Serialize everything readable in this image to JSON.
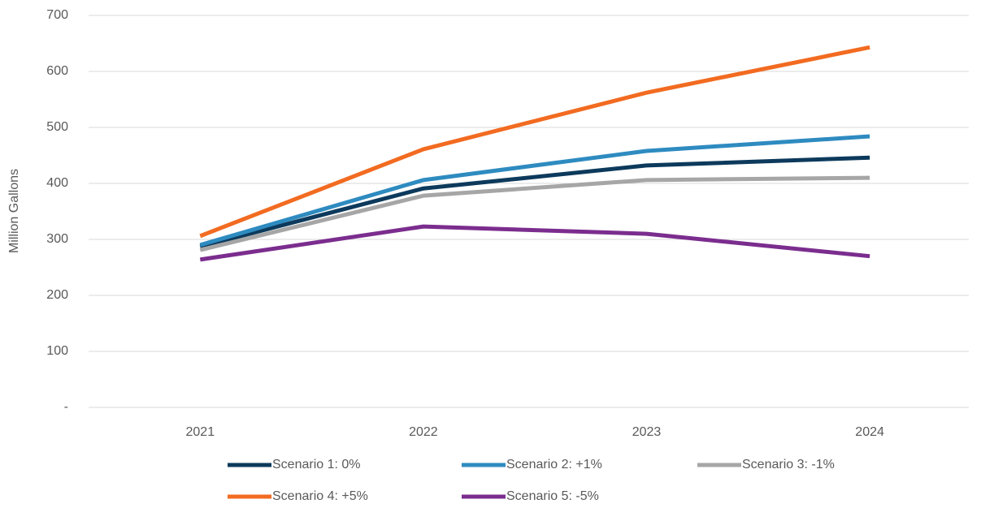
{
  "chart_data": {
    "type": "line",
    "y_label": "Million Gallons",
    "categories": [
      "2021",
      "2022",
      "2023",
      "2024"
    ],
    "series": [
      {
        "name": "Scenario 1: 0%",
        "color": "#0d3a5c",
        "values": [
          287,
          391,
          432,
          446
        ]
      },
      {
        "name": "Scenario 2: +1%",
        "color": "#2e8bc0",
        "values": [
          290,
          406,
          458,
          484
        ]
      },
      {
        "name": "Scenario 3: -1%",
        "color": "#a6a6a6",
        "values": [
          281,
          378,
          406,
          410
        ]
      },
      {
        "name": "Scenario 4: +5%",
        "color": "#f26b21",
        "values": [
          306,
          461,
          562,
          643
        ]
      },
      {
        "name": "Scenario 5: -5%",
        "color": "#7b2d8e",
        "values": [
          264,
          323,
          310,
          270
        ]
      }
    ],
    "ylim": [
      0,
      700
    ],
    "yticks": [
      {
        "value": 0,
        "label": "-"
      },
      100,
      200,
      300,
      400,
      500,
      600,
      700
    ],
    "grid": true,
    "legend": "bottom"
  }
}
